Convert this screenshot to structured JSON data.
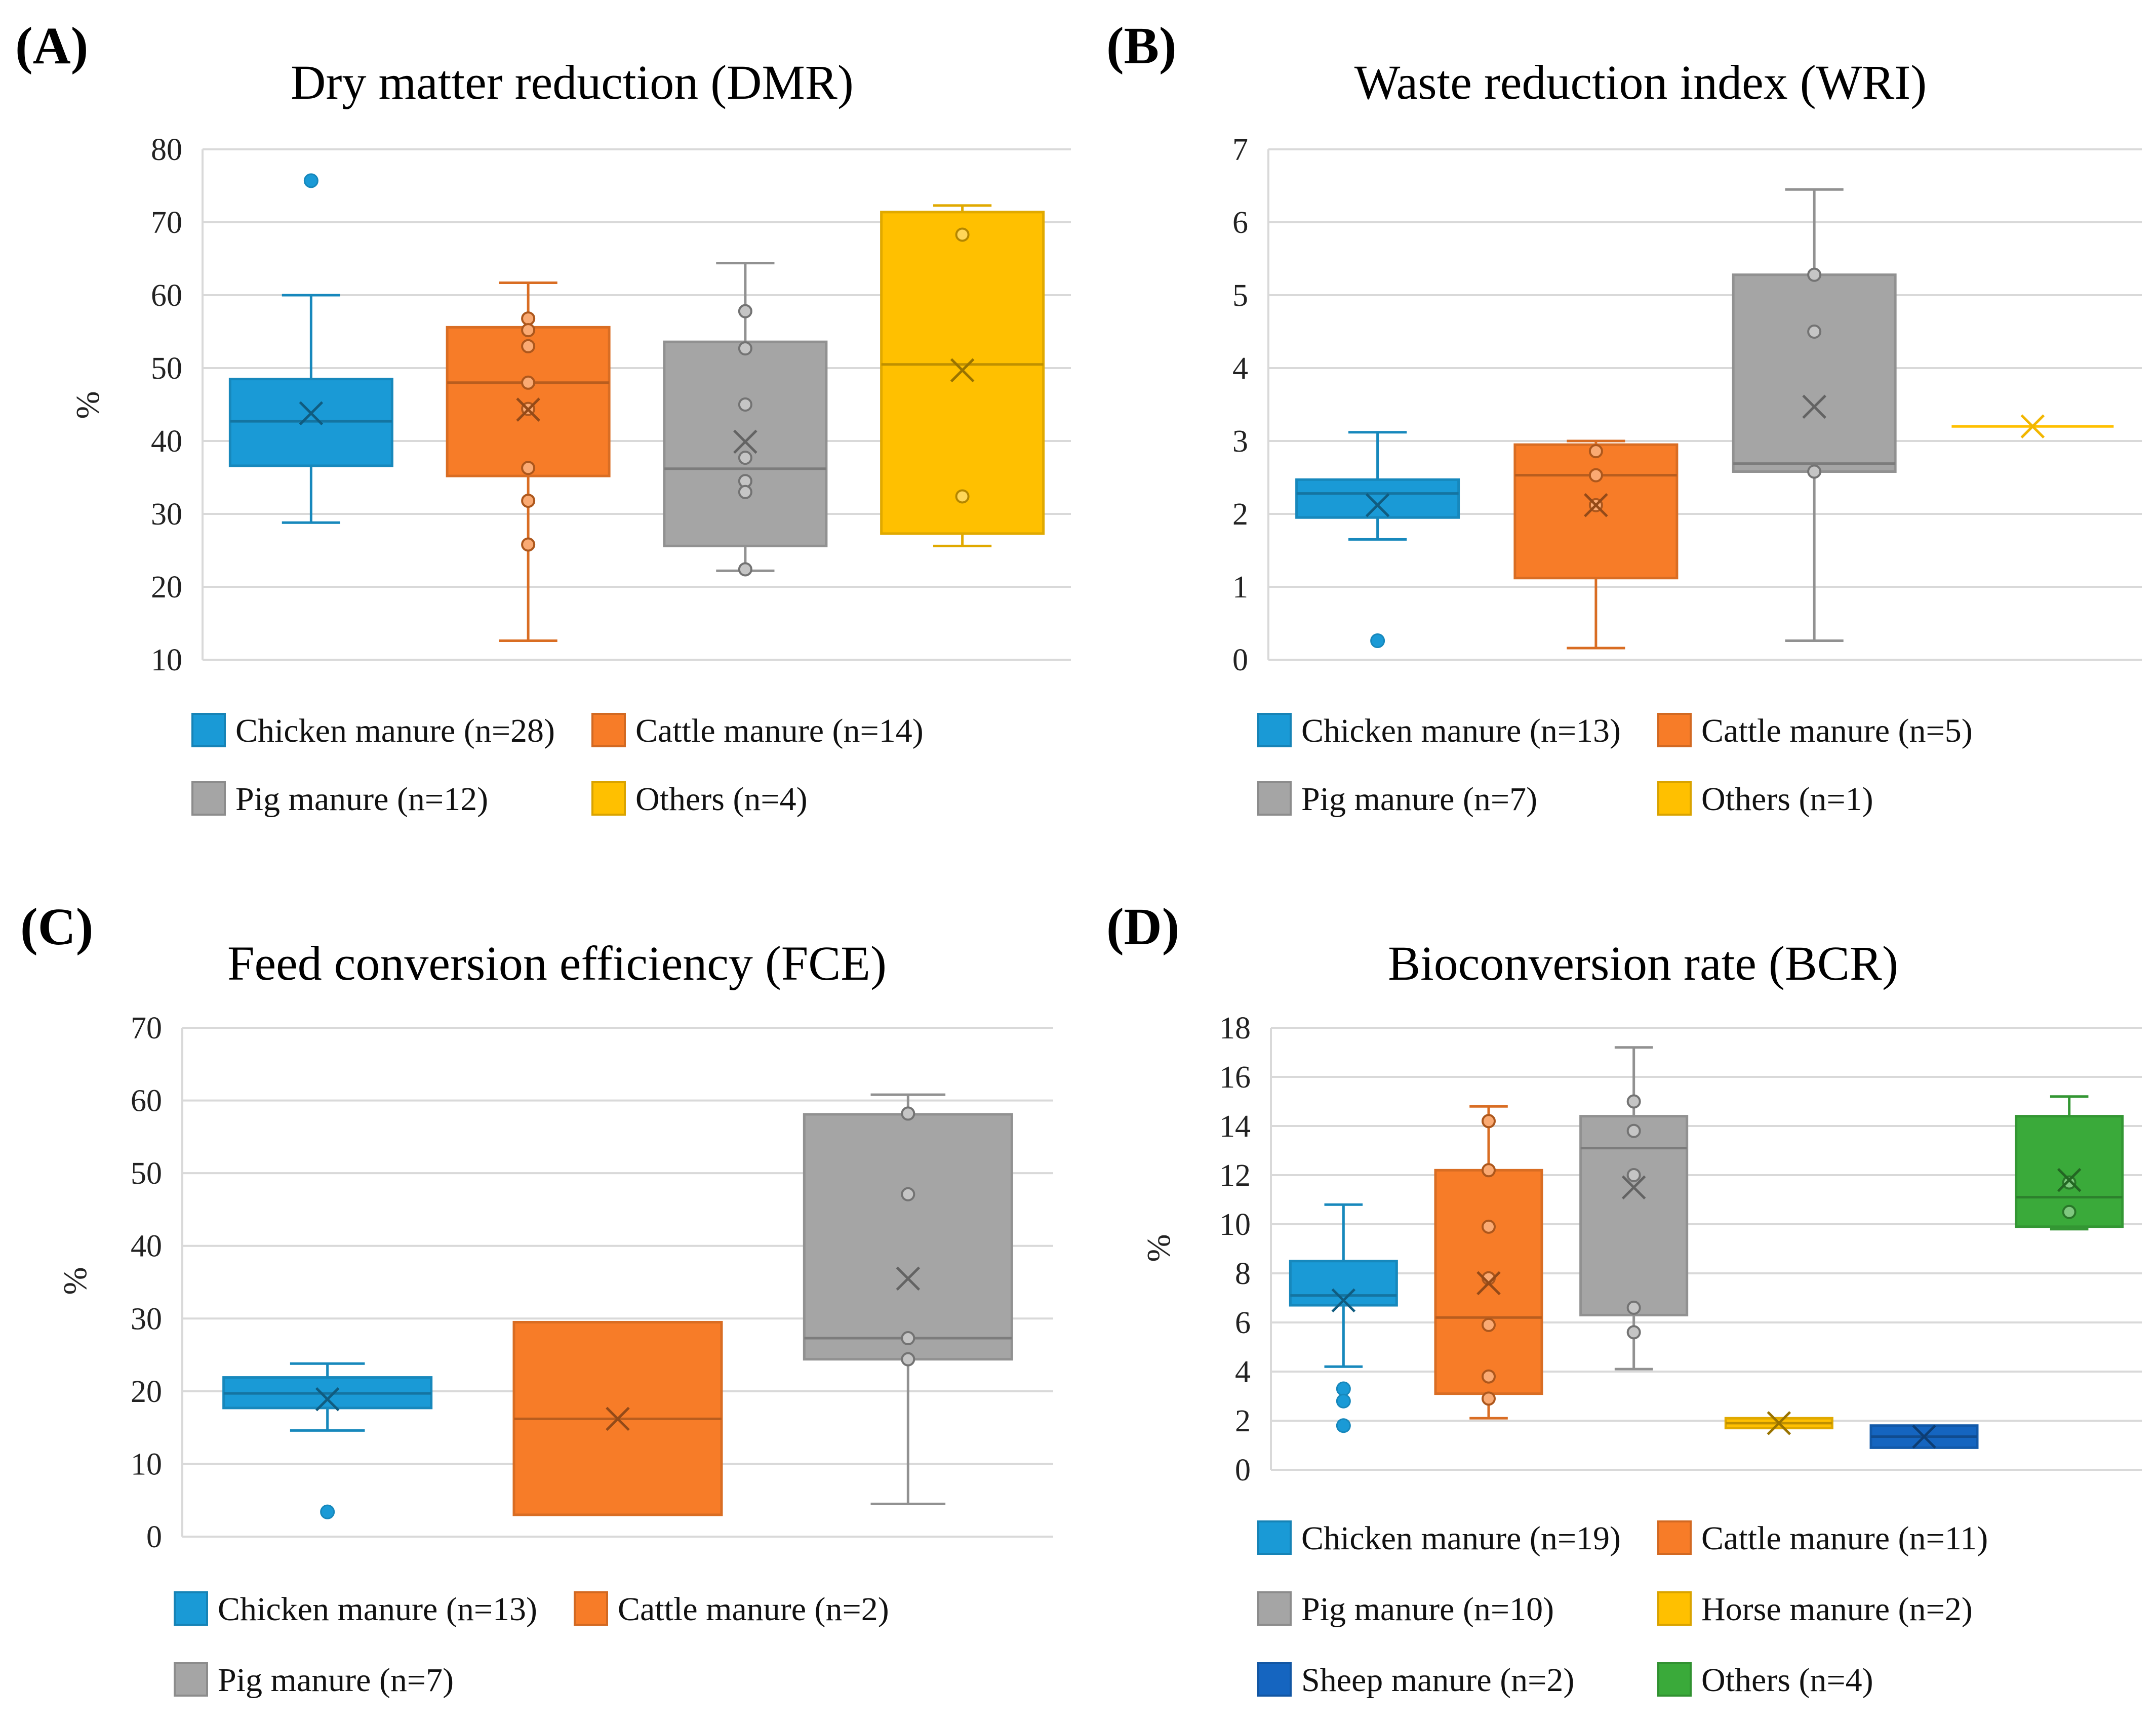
{
  "chart_data": [
    {
      "id": "A",
      "type": "box",
      "panel_label": "(A)",
      "title": "Dry matter reduction (DMR)",
      "ylabel": "%",
      "ylim": [
        10,
        80
      ],
      "yticks": [
        10,
        20,
        30,
        40,
        50,
        60,
        70,
        80
      ],
      "grid": true,
      "legend": "bottom",
      "series": [
        {
          "name": "Chicken manure (n=28)",
          "color": "#1a9ad6",
          "min": 28.8,
          "q1": 36.6,
          "median": 42.7,
          "q3": 48.5,
          "max": 60,
          "mean": 43.8,
          "points": [],
          "outliers": [
            75.7
          ]
        },
        {
          "name": "Cattle manure (n=14)",
          "color": "#f77c28",
          "min": 12.6,
          "q1": 35.2,
          "median": 48,
          "q3": 55.6,
          "max": 61.7,
          "mean": 44.3,
          "points": [
            56.8,
            55.2,
            53,
            48,
            44.4,
            36.3,
            31.8,
            25.8
          ],
          "outliers": []
        },
        {
          "name": "Pig manure (n=12)",
          "color": "#a5a5a5",
          "min": 22.2,
          "q1": 25.6,
          "median": 36.2,
          "q3": 53.6,
          "max": 64.4,
          "mean": 39.9,
          "points": [
            57.8,
            52.7,
            45,
            37.7,
            34.5,
            33,
            22.4
          ],
          "outliers": []
        },
        {
          "name": "Others (n=4)",
          "color": "#ffc000",
          "min": 25.6,
          "q1": 27.3,
          "median": 50.5,
          "q3": 71.4,
          "max": 72.3,
          "mean": 49.7,
          "points": [
            68.3,
            32.4
          ],
          "outliers": []
        }
      ]
    },
    {
      "id": "B",
      "type": "box",
      "panel_label": "(B)",
      "title": "Waste reduction index (WRI)",
      "ylabel": "",
      "ylim": [
        0,
        7
      ],
      "yticks": [
        0,
        1,
        2,
        3,
        4,
        5,
        6,
        7
      ],
      "grid": true,
      "legend": "bottom",
      "series": [
        {
          "name": "Chicken manure (n=13)",
          "color": "#1a9ad6",
          "min": 1.65,
          "q1": 1.95,
          "median": 2.28,
          "q3": 2.47,
          "max": 3.12,
          "mean": 2.12,
          "points": [],
          "outliers": [
            0.26
          ]
        },
        {
          "name": "Cattle manure (n=5)",
          "color": "#f77c28",
          "min": 0.16,
          "q1": 1.12,
          "median": 2.53,
          "q3": 2.95,
          "max": 3,
          "mean": 2.12,
          "points": [
            2.86,
            2.53,
            2.12
          ],
          "outliers": []
        },
        {
          "name": "Pig manure (n=7)",
          "color": "#a5a5a5",
          "min": 0.26,
          "q1": 2.58,
          "median": 2.69,
          "q3": 5.28,
          "max": 6.45,
          "mean": 3.47,
          "points": [
            5.28,
            4.5,
            2.58
          ],
          "outliers": []
        },
        {
          "name": "Others (n=1)",
          "color": "#ffc000",
          "min": 3.2,
          "q1": 3.2,
          "median": 3.2,
          "q3": 3.2,
          "max": 3.2,
          "mean": 3.2,
          "points": [],
          "outliers": []
        }
      ]
    },
    {
      "id": "C",
      "type": "box",
      "panel_label": "(C)",
      "title": "Feed conversion efficiency (FCE)",
      "ylabel": "%",
      "ylim": [
        0,
        70
      ],
      "yticks": [
        0,
        10,
        20,
        30,
        40,
        50,
        60,
        70
      ],
      "grid": true,
      "legend": "bottom",
      "series": [
        {
          "name": "Chicken manure (n=13)",
          "color": "#1a9ad6",
          "min": 14.6,
          "q1": 17.7,
          "median": 19.7,
          "q3": 21.9,
          "max": 23.8,
          "mean": 18.9,
          "points": [],
          "outliers": [
            3.4
          ]
        },
        {
          "name": "Cattle manure (n=2)",
          "color": "#f77c28",
          "min": 3,
          "q1": 3,
          "median": 16.2,
          "q3": 29.5,
          "max": 29.5,
          "mean": 16.2,
          "points": [],
          "outliers": []
        },
        {
          "name": "Pig manure (n=7)",
          "color": "#a5a5a5",
          "min": 4.5,
          "q1": 24.4,
          "median": 27.3,
          "q3": 58.1,
          "max": 60.8,
          "mean": 35.5,
          "points": [
            58.2,
            47.1,
            27.3,
            24.4
          ],
          "outliers": []
        }
      ]
    },
    {
      "id": "D",
      "type": "box",
      "panel_label": "(D)",
      "title": "Bioconversion rate (BCR)",
      "ylabel": "%",
      "ylim": [
        0,
        18
      ],
      "yticks": [
        0,
        2,
        4,
        6,
        8,
        10,
        12,
        14,
        16,
        18
      ],
      "grid": true,
      "legend": "bottom",
      "series": [
        {
          "name": "Chicken manure (n=19)",
          "color": "#1a9ad6",
          "min": 4.2,
          "q1": 6.7,
          "median": 7.1,
          "q3": 8.5,
          "max": 10.8,
          "mean": 6.9,
          "points": [],
          "outliers": [
            3.3,
            2.8,
            1.8
          ]
        },
        {
          "name": "Cattle manure (n=11)",
          "color": "#f77c28",
          "min": 2.1,
          "q1": 3.1,
          "median": 6.2,
          "q3": 12.2,
          "max": 14.8,
          "mean": 7.6,
          "points": [
            14.2,
            12.2,
            9.9,
            7.8,
            5.9,
            3.8,
            2.9
          ],
          "outliers": []
        },
        {
          "name": "Pig manure (n=10)",
          "color": "#a5a5a5",
          "min": 4.1,
          "q1": 6.3,
          "median": 13.1,
          "q3": 14.4,
          "max": 17.2,
          "mean": 11.5,
          "points": [
            15,
            13.8,
            12,
            6.6,
            5.6
          ],
          "outliers": []
        },
        {
          "name": "Horse manure (n=2)",
          "color": "#ffc000",
          "min": 1.7,
          "q1": 1.7,
          "median": 1.9,
          "q3": 2.1,
          "max": 2.1,
          "mean": 1.9,
          "points": [],
          "outliers": []
        },
        {
          "name": "Sheep manure (n=2)",
          "color": "#1565c0",
          "min": 0.9,
          "q1": 0.9,
          "median": 1.35,
          "q3": 1.8,
          "max": 1.8,
          "mean": 1.35,
          "points": [],
          "outliers": []
        },
        {
          "name": "Others (n=4)",
          "color": "#3aaa3a",
          "min": 9.8,
          "q1": 9.9,
          "median": 11.1,
          "q3": 14.4,
          "max": 15.2,
          "mean": 11.8,
          "points": [
            11.7,
            10.5
          ],
          "outliers": []
        }
      ]
    }
  ]
}
